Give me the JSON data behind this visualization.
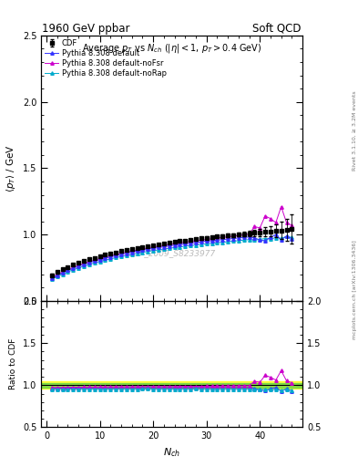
{
  "title_left": "1960 GeV ppbar",
  "title_right": "Soft QCD",
  "plot_title": "Average $p_T$ vs $N_{ch}$ ($|\\eta| < 1$, $p_T > 0.4$ GeV)",
  "ylabel_main": "$\\langle p_T \\rangle$ / GeV",
  "ylabel_ratio": "Ratio to CDF",
  "xlabel": "$N_{ch}$",
  "right_label_top": "Rivet 3.1.10, ≥ 3.2M events",
  "right_label_bot": "mcplots.cern.ch [arXiv:1306.3436]",
  "watermark": "CDF_2009_S8233977",
  "ylim_main": [
    0.5,
    2.5
  ],
  "ylim_ratio": [
    0.5,
    2.0
  ],
  "xlim": [
    -1,
    48
  ],
  "legend": [
    "CDF",
    "Pythia 8.308 default",
    "Pythia 8.308 default-noFsr",
    "Pythia 8.308 default-noRap"
  ],
  "cdf_x": [
    1,
    2,
    3,
    4,
    5,
    6,
    7,
    8,
    9,
    10,
    11,
    12,
    13,
    14,
    15,
    16,
    17,
    18,
    19,
    20,
    21,
    22,
    23,
    24,
    25,
    26,
    27,
    28,
    29,
    30,
    31,
    32,
    33,
    34,
    35,
    36,
    37,
    38,
    39,
    40,
    41,
    42,
    43,
    44,
    45,
    46
  ],
  "cdf_y": [
    0.695,
    0.718,
    0.738,
    0.756,
    0.772,
    0.787,
    0.8,
    0.813,
    0.825,
    0.836,
    0.847,
    0.857,
    0.866,
    0.875,
    0.884,
    0.892,
    0.9,
    0.907,
    0.914,
    0.921,
    0.928,
    0.934,
    0.94,
    0.946,
    0.951,
    0.956,
    0.961,
    0.966,
    0.971,
    0.975,
    0.98,
    0.984,
    0.988,
    0.992,
    0.996,
    1.0,
    1.004,
    1.008,
    1.012,
    1.016,
    1.02,
    1.024,
    1.028,
    1.032,
    1.036,
    1.04
  ],
  "cdf_yerr": [
    0.012,
    0.009,
    0.008,
    0.007,
    0.006,
    0.006,
    0.005,
    0.005,
    0.005,
    0.005,
    0.005,
    0.005,
    0.005,
    0.005,
    0.005,
    0.005,
    0.005,
    0.005,
    0.005,
    0.006,
    0.006,
    0.006,
    0.006,
    0.007,
    0.007,
    0.007,
    0.008,
    0.008,
    0.009,
    0.009,
    0.01,
    0.011,
    0.012,
    0.013,
    0.014,
    0.016,
    0.018,
    0.02,
    0.023,
    0.027,
    0.033,
    0.04,
    0.05,
    0.063,
    0.082,
    0.11
  ],
  "py_default_x": [
    1,
    2,
    3,
    4,
    5,
    6,
    7,
    8,
    9,
    10,
    11,
    12,
    13,
    14,
    15,
    16,
    17,
    18,
    19,
    20,
    21,
    22,
    23,
    24,
    25,
    26,
    27,
    28,
    29,
    30,
    31,
    32,
    33,
    34,
    35,
    36,
    37,
    38,
    39,
    40,
    41,
    42,
    43,
    44,
    45,
    46
  ],
  "py_default_y": [
    0.67,
    0.692,
    0.712,
    0.73,
    0.746,
    0.761,
    0.775,
    0.788,
    0.8,
    0.811,
    0.822,
    0.832,
    0.841,
    0.85,
    0.859,
    0.867,
    0.875,
    0.882,
    0.889,
    0.896,
    0.902,
    0.908,
    0.914,
    0.92,
    0.925,
    0.93,
    0.935,
    0.94,
    0.945,
    0.95,
    0.954,
    0.958,
    0.962,
    0.966,
    0.97,
    0.974,
    0.978,
    0.982,
    0.975,
    0.96,
    0.952,
    0.98,
    1.0,
    0.958,
    0.99,
    0.97
  ],
  "py_nofsr_x": [
    1,
    2,
    3,
    4,
    5,
    6,
    7,
    8,
    9,
    10,
    11,
    12,
    13,
    14,
    15,
    16,
    17,
    18,
    19,
    20,
    21,
    22,
    23,
    24,
    25,
    26,
    27,
    28,
    29,
    30,
    31,
    32,
    33,
    34,
    35,
    36,
    37,
    38,
    39,
    40,
    41,
    42,
    43,
    44,
    45,
    46
  ],
  "py_nofsr_y": [
    0.676,
    0.698,
    0.718,
    0.736,
    0.753,
    0.768,
    0.782,
    0.795,
    0.807,
    0.819,
    0.83,
    0.84,
    0.85,
    0.859,
    0.868,
    0.876,
    0.884,
    0.892,
    0.899,
    0.906,
    0.913,
    0.919,
    0.925,
    0.931,
    0.937,
    0.943,
    0.948,
    0.953,
    0.958,
    0.963,
    0.968,
    0.973,
    0.978,
    0.983,
    0.988,
    0.993,
    0.998,
    1.003,
    1.06,
    1.05,
    1.14,
    1.12,
    1.09,
    1.21,
    1.09,
    1.07
  ],
  "py_norap_x": [
    1,
    2,
    3,
    4,
    5,
    6,
    7,
    8,
    9,
    10,
    11,
    12,
    13,
    14,
    15,
    16,
    17,
    18,
    19,
    20,
    21,
    22,
    23,
    24,
    25,
    26,
    27,
    28,
    29,
    30,
    31,
    32,
    33,
    34,
    35,
    36,
    37,
    38,
    39,
    40,
    41,
    42,
    43,
    44,
    45,
    46
  ],
  "py_norap_y": [
    0.662,
    0.683,
    0.702,
    0.719,
    0.735,
    0.749,
    0.762,
    0.775,
    0.786,
    0.797,
    0.807,
    0.817,
    0.826,
    0.835,
    0.843,
    0.851,
    0.858,
    0.866,
    0.873,
    0.879,
    0.885,
    0.891,
    0.897,
    0.902,
    0.907,
    0.912,
    0.917,
    0.922,
    0.926,
    0.93,
    0.934,
    0.938,
    0.942,
    0.946,
    0.95,
    0.954,
    0.958,
    0.962,
    0.958,
    0.964,
    0.97,
    0.968,
    0.976,
    0.972,
    0.985,
    0.978
  ],
  "color_cdf": "#000000",
  "color_default": "#3333ff",
  "color_nofsr": "#cc00cc",
  "color_norap": "#00aacc",
  "ratio_band_yellow_lo": 0.955,
  "ratio_band_yellow_hi": 1.045,
  "ratio_band_green_lo": 0.975,
  "ratio_band_green_hi": 1.025
}
